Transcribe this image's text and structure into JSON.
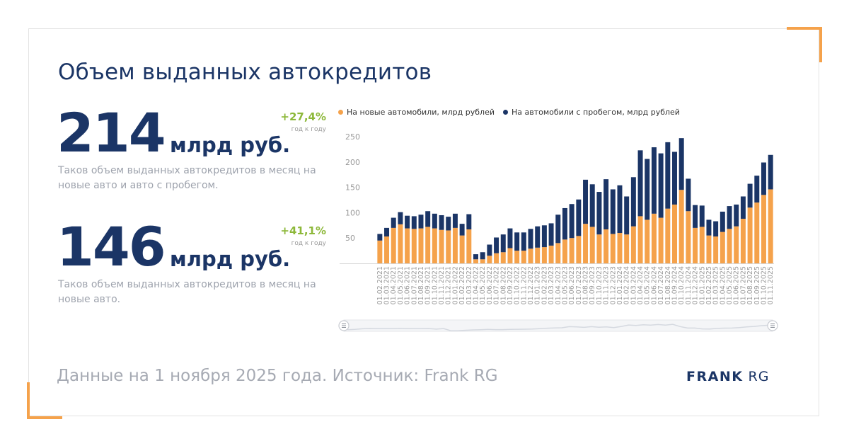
{
  "title": "Объем выданных автокредитов",
  "stat1": {
    "value": "214",
    "unit": "млрд руб.",
    "delta": "+27,4%",
    "delta_note": "год к году",
    "desc": "Таков объем выданных автокредитов в месяц на новые авто и авто с пробегом."
  },
  "stat2": {
    "value": "146",
    "unit": "млрд руб.",
    "delta": "+41,1%",
    "delta_note": "год к году",
    "desc": "Таков объем выданных автокредитов в месяц на новые авто."
  },
  "footer": "Данные на 1 ноября 2025 года. Источник: Frank RG",
  "logo": {
    "bold": "FRANK",
    "light": "RG"
  },
  "colors": {
    "accent": "#f5a24b",
    "navy": "#1b3566",
    "green": "#8db83a"
  },
  "chart_data": {
    "type": "bar",
    "stacked": true,
    "legend_position": "top",
    "grid": false,
    "ylim": [
      0,
      250
    ],
    "yticks": [
      50,
      100,
      150,
      200,
      250
    ],
    "categories": [
      "01.02.2021",
      "01.03.2021",
      "01.04.2021",
      "01.05.2021",
      "01.06.2021",
      "01.07.2021",
      "01.08.2021",
      "01.09.2021",
      "01.10.2021",
      "01.11.2021",
      "01.12.2021",
      "01.01.2022",
      "01.02.2022",
      "01.03.2022",
      "01.04.2022",
      "01.05.2022",
      "01.06.2022",
      "01.07.2022",
      "01.08.2022",
      "01.09.2022",
      "01.10.2022",
      "01.11.2022",
      "01.12.2022",
      "01.01.2023",
      "01.02.2023",
      "01.03.2023",
      "01.04.2023",
      "01.05.2023",
      "01.06.2023",
      "01.07.2023",
      "01.08.2023",
      "01.09.2023",
      "01.10.2023",
      "01.11.2023",
      "01.12.2023",
      "01.01.2024",
      "01.02.2024",
      "01.03.2024",
      "01.04.2024",
      "01.05.2024",
      "01.06.2024",
      "01.07.2024",
      "01.08.2024",
      "01.09.2024",
      "01.10.2024",
      "01.11.2024",
      "01.12.2024",
      "01.01.2025",
      "01.02.2025",
      "01.03.2025",
      "01.04.2025",
      "01.05.2025",
      "01.06.2025",
      "01.07.2025",
      "01.08.2025",
      "01.09.2025",
      "01.10.2025",
      "01.11.2025"
    ],
    "series": [
      {
        "name": "На новые автомобили, млрд рублей",
        "color": "#f5a24b",
        "values": [
          45,
          53,
          70,
          77,
          69,
          68,
          69,
          72,
          69,
          66,
          65,
          70,
          55,
          67,
          8,
          8,
          15,
          20,
          22,
          30,
          25,
          25,
          29,
          31,
          32,
          35,
          40,
          47,
          50,
          54,
          78,
          72,
          57,
          67,
          58,
          60,
          57,
          73,
          93,
          86,
          98,
          90,
          108,
          116,
          145,
          103,
          70,
          72,
          55,
          53,
          62,
          68,
          73,
          88,
          110,
          120,
          135,
          146
        ]
      },
      {
        "name": "На автомобили с пробегом, млрд рублей",
        "color": "#1b3566",
        "values": [
          13,
          17,
          20,
          24,
          25,
          25,
          27,
          31,
          29,
          29,
          27,
          28,
          23,
          30,
          10,
          14,
          22,
          31,
          35,
          39,
          36,
          36,
          39,
          42,
          43,
          44,
          56,
          62,
          67,
          72,
          87,
          84,
          84,
          99,
          88,
          94,
          75,
          97,
          130,
          120,
          131,
          127,
          131,
          104,
          102,
          64,
          45,
          42,
          31,
          30,
          40,
          45,
          43,
          44,
          47,
          53,
          64,
          68
        ]
      }
    ]
  }
}
